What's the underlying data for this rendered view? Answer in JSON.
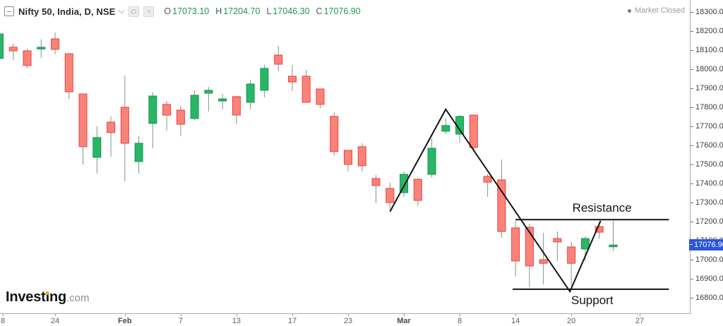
{
  "header": {
    "title": "Nifty 50, India, D, NSE",
    "ohlc": [
      {
        "k": "O",
        "v": "17073.10"
      },
      {
        "k": "H",
        "v": "17204.70"
      },
      {
        "k": "L",
        "v": "17046.30"
      },
      {
        "k": "C",
        "v": "17076.90"
      }
    ],
    "market_status": "Market Closed"
  },
  "logo": {
    "part1": "Invest",
    "letter_dotless": "ı",
    "part2": "ng",
    "suffix": ".com"
  },
  "price_badge": "17076.90",
  "colors": {
    "up_fill": "#2bb566",
    "up_border": "#0e9b51",
    "down_fill": "#f9837b",
    "down_border": "#ee4237",
    "wick": "#7d9887",
    "trend_line": "#151515",
    "level_line": "#151515",
    "level_text": "#151515",
    "badge_bg": "#2c55dd",
    "ohlc_value": "#21994f"
  },
  "chart_data": {
    "type": "candlestick",
    "symbol": "Nifty 50",
    "exchange": "NSE",
    "interval": "D",
    "title": "Nifty 50, India, D, NSE",
    "last_ohlc": {
      "open": 17073.1,
      "high": 17204.7,
      "low": 17046.3,
      "close": 17076.9
    },
    "y_axis": {
      "ticks": [
        18300,
        18200,
        18100,
        18000,
        17900,
        17800,
        17700,
        17600,
        17500,
        17400,
        17300,
        17200,
        17100,
        17000,
        16900,
        16800
      ],
      "tick_decimals": 2,
      "grid": false
    },
    "x_axis": {
      "labels": [
        {
          "i": 0,
          "t": "8"
        },
        {
          "i": 4,
          "t": "24"
        },
        {
          "i": 9,
          "t": "Feb",
          "month": true
        },
        {
          "i": 13,
          "t": "7"
        },
        {
          "i": 17,
          "t": "13"
        },
        {
          "i": 21,
          "t": "17"
        },
        {
          "i": 25,
          "t": "23"
        },
        {
          "i": 29,
          "t": "Mar",
          "month": true
        },
        {
          "i": 33,
          "t": "8"
        },
        {
          "i": 37,
          "t": "14"
        },
        {
          "i": 41,
          "t": "20"
        },
        {
          "i": 45.9,
          "t": "27"
        }
      ]
    },
    "candles_format": [
      "open",
      "high",
      "low",
      "close"
    ],
    "candles": [
      [
        18056,
        18196,
        18022,
        18185
      ],
      [
        18115,
        18133,
        18048,
        18096
      ],
      [
        18096,
        18107,
        18004,
        18019
      ],
      [
        18107,
        18156,
        18059,
        18115
      ],
      [
        18159,
        18193,
        18078,
        18104
      ],
      [
        18081,
        18081,
        17844,
        17881
      ],
      [
        17870,
        17870,
        17500,
        17593
      ],
      [
        17537,
        17700,
        17452,
        17641
      ],
      [
        17722,
        17752,
        17541,
        17667
      ],
      [
        17800,
        17967,
        17411,
        17611
      ],
      [
        17515,
        17648,
        17452,
        17611
      ],
      [
        17715,
        17878,
        17585,
        17859
      ],
      [
        17815,
        17833,
        17678,
        17759
      ],
      [
        17785,
        17807,
        17648,
        17711
      ],
      [
        17741,
        17889,
        17733,
        17863
      ],
      [
        17874,
        17907,
        17778,
        17889
      ],
      [
        17833,
        17870,
        17789,
        17844
      ],
      [
        17856,
        17856,
        17711,
        17759
      ],
      [
        17826,
        17944,
        17789,
        17922
      ],
      [
        17889,
        18022,
        17852,
        18004
      ],
      [
        18074,
        18122,
        17989,
        18026
      ],
      [
        17963,
        18022,
        17885,
        17933
      ],
      [
        17963,
        17996,
        17826,
        17826
      ],
      [
        17896,
        17896,
        17796,
        17815
      ],
      [
        17752,
        17774,
        17544,
        17567
      ],
      [
        17574,
        17574,
        17463,
        17500
      ],
      [
        17593,
        17611,
        17463,
        17493
      ],
      [
        17426,
        17444,
        17296,
        17389
      ],
      [
        17374,
        17404,
        17263,
        17300
      ],
      [
        17352,
        17463,
        17330,
        17448
      ],
      [
        17422,
        17430,
        17281,
        17311
      ],
      [
        17448,
        17637,
        17430,
        17585
      ],
      [
        17674,
        17744,
        17659,
        17704
      ],
      [
        17659,
        17759,
        17615,
        17752
      ],
      [
        17759,
        17759,
        17567,
        17589
      ],
      [
        17437,
        17448,
        17330,
        17407
      ],
      [
        17419,
        17526,
        17115,
        17148
      ],
      [
        17167,
        17204,
        16911,
        16993
      ],
      [
        17170,
        17189,
        16856,
        16967
      ],
      [
        17000,
        17141,
        16870,
        16981
      ],
      [
        17111,
        17148,
        16993,
        17093
      ],
      [
        17067,
        17093,
        16863,
        16981
      ],
      [
        17056,
        17122,
        16993,
        17111
      ],
      [
        17174,
        17196,
        17111,
        17144
      ],
      [
        17073.1,
        17204.7,
        17046.3,
        17076.9
      ]
    ],
    "annotations": {
      "trendline_points": [
        {
          "i": 28,
          "p": 17252
        },
        {
          "i": 32,
          "p": 17789
        },
        {
          "i": 40.9,
          "p": 16833
        },
        {
          "i": 43.1,
          "p": 17204
        }
      ],
      "levels": [
        {
          "label": "Resistance",
          "price": 17210,
          "from_i": 37,
          "to_i": 48,
          "label_i": 43.2,
          "label_p": 17252
        },
        {
          "label": "Support",
          "price": 16845,
          "from_i": 36.8,
          "to_i": 48,
          "label_i": 42.5,
          "label_p": 16767
        }
      ]
    },
    "last_close": 17076.9
  }
}
